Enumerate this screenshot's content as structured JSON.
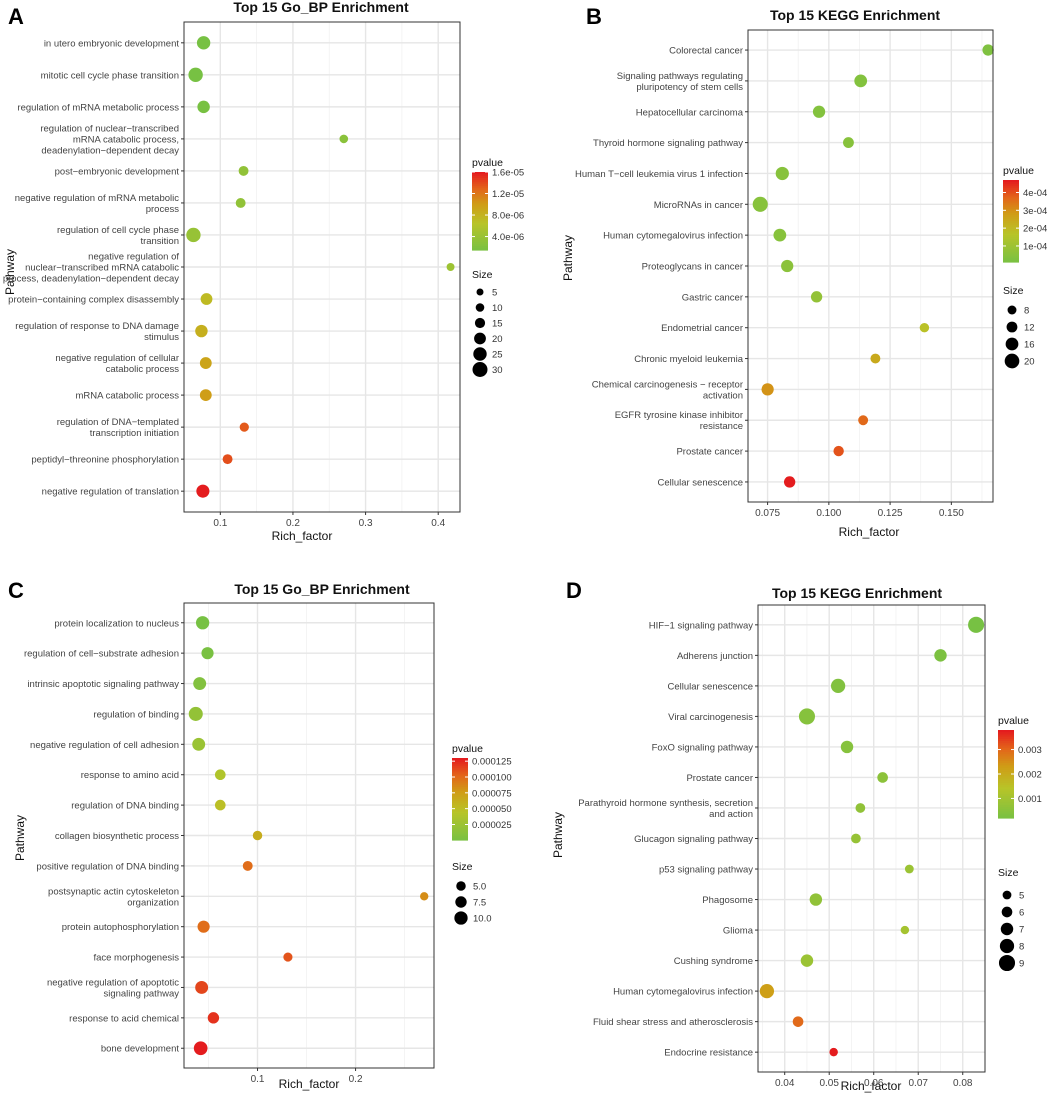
{
  "chart_data": [
    {
      "panel": "A",
      "type": "scatter",
      "title": "Top 15 Go_BP Enrichment",
      "xlabel": "Rich_factor",
      "ylabel": "Pathway",
      "xlim": [
        0.05,
        0.43
      ],
      "xticks": [
        0.1,
        0.2,
        0.3,
        0.4
      ],
      "xtick_labels": [
        "0.1",
        "0.2",
        "0.3",
        "0.4"
      ],
      "color_legend": {
        "title": "pvalue",
        "min": 1.5e-06,
        "max": 1.6e-05,
        "labels": [
          "1.6e-05",
          "1.2e-05",
          "8.0e-06",
          "4.0e-06"
        ],
        "values": [
          1.6e-05,
          1.2e-05,
          8e-06,
          4e-06
        ]
      },
      "size_legend": {
        "title": "Size",
        "labels": [
          "5",
          "10",
          "15",
          "20",
          "25",
          "30"
        ],
        "values": [
          5,
          10,
          15,
          20,
          25,
          30
        ],
        "min": 5,
        "max": 30
      },
      "categories": [
        "in utero embryonic development",
        "mitotic cell cycle phase transition",
        "regulation of mRNA metabolic process",
        "regulation of nuclear−transcribed\nmRNA catabolic process,\ndeadenylation−dependent decay",
        "post−embryonic development",
        "negative regulation of mRNA metabolic\nprocess",
        "regulation of cell cycle phase\ntransition",
        "negative regulation of\nnuclear−transcribed mRNA catabolic\nprocess, deadenylation−dependent decay",
        "protein−containing complex disassembly",
        "regulation of response to DNA damage\nstimulus",
        "negative regulation of cellular\ncatabolic process",
        "mRNA catabolic process",
        "regulation of DNA−templated\ntranscription initiation",
        "peptidyl−threonine phosphorylation",
        "negative regulation of translation"
      ],
      "x": [
        0.077,
        0.066,
        0.077,
        0.27,
        0.132,
        0.128,
        0.063,
        0.417,
        0.081,
        0.074,
        0.08,
        0.08,
        0.133,
        0.11,
        0.076
      ],
      "size": [
        25,
        28,
        22,
        10,
        14,
        14,
        28,
        8,
        20,
        22,
        20,
        20,
        12,
        14,
        24
      ],
      "pvalue": [
        1.5e-06,
        1.5e-06,
        1.6e-06,
        3e-06,
        3.5e-06,
        3.5e-06,
        4e-06,
        4.5e-06,
        7.5e-06,
        8.5e-06,
        9.5e-06,
        1e-05,
        1.35e-05,
        1.4e-05,
        1.6e-05
      ]
    },
    {
      "panel": "B",
      "type": "scatter",
      "title": "Top 15 KEGG Enrichment",
      "xlabel": "Rich_factor",
      "ylabel": "Pathway",
      "xlim": [
        0.067,
        0.167
      ],
      "xticks": [
        0.075,
        0.1,
        0.125,
        0.15
      ],
      "xtick_labels": [
        "0.075",
        "0.100",
        "0.125",
        "0.150"
      ],
      "color_legend": {
        "title": "pvalue",
        "min": 1e-05,
        "max": 0.00047,
        "labels": [
          "4e-04",
          "3e-04",
          "2e-04",
          "1e-04"
        ],
        "values": [
          0.0004,
          0.0003,
          0.0002,
          0.0001
        ]
      },
      "size_legend": {
        "title": "Size",
        "labels": [
          "8",
          "12",
          "16",
          "20"
        ],
        "values": [
          8,
          12,
          16,
          20
        ],
        "min": 6,
        "max": 22
      },
      "categories": [
        "Colorectal cancer",
        "Signaling pathways regulating\npluripotency of stem cells",
        "Hepatocellular carcinoma",
        "Thyroid hormone signaling pathway",
        "Human T−cell leukemia virus 1 infection",
        "MicroRNAs in cancer",
        "Human cytomegalovirus infection",
        "Proteoglycans in cancer",
        "Gastric cancer",
        "Endometrial cancer",
        "Chronic myeloid leukemia",
        "Chemical carcinogenesis − receptor\nactivation",
        "EGFR tyrosine kinase inhibitor\nresistance",
        "Prostate cancer",
        "Cellular senescence"
      ],
      "x": [
        0.165,
        0.113,
        0.096,
        0.108,
        0.081,
        0.072,
        0.08,
        0.083,
        0.095,
        0.139,
        0.119,
        0.075,
        0.114,
        0.104,
        0.084
      ],
      "size": [
        13,
        16,
        15,
        12,
        17,
        21,
        16,
        15,
        13,
        9,
        10,
        15,
        10,
        11,
        13
      ],
      "pvalue": [
        3e-05,
        4e-05,
        4e-05,
        5e-05,
        5e-05,
        5e-05,
        5e-05,
        6e-05,
        8e-05,
        0.00018,
        0.00025,
        0.0003,
        0.00037,
        0.0004,
        0.00047
      ]
    },
    {
      "panel": "C",
      "type": "scatter",
      "title": "Top 15 Go_BP Enrichment",
      "xlabel": "Rich_factor",
      "ylabel": "Pathway",
      "xlim": [
        0.025,
        0.28
      ],
      "xticks": [
        0.1,
        0.2
      ],
      "xtick_labels": [
        "0.1",
        "0.2"
      ],
      "color_legend": {
        "title": "pvalue",
        "min": 5e-07,
        "max": 0.00013,
        "labels": [
          "0.000125",
          "0.000100",
          "0.000075",
          "0.000050",
          "0.000025"
        ],
        "values": [
          0.000125,
          0.0001,
          7.5e-05,
          5e-05,
          2.5e-05
        ]
      },
      "size_legend": {
        "title": "Size",
        "labels": [
          "5.0",
          "7.5",
          "10.0"
        ],
        "values": [
          5,
          7.5,
          10
        ],
        "min": 3,
        "max": 12
      },
      "categories": [
        "protein localization to nucleus",
        "regulation of cell−substrate adhesion",
        "intrinsic apoptotic signaling pathway",
        "regulation of binding",
        "negative regulation of cell adhesion",
        "response to amino acid",
        "regulation of DNA binding",
        "collagen biosynthetic process",
        "positive regulation of DNA binding",
        "postsynaptic actin cytoskeleton\norganization",
        "protein autophosphorylation",
        "face morphogenesis",
        "negative regulation of apoptotic\nsignaling pathway",
        "response to acid chemical",
        "bone development"
      ],
      "x": [
        0.044,
        0.049,
        0.041,
        0.037,
        0.04,
        0.062,
        0.062,
        0.1,
        0.09,
        0.27,
        0.045,
        0.131,
        0.043,
        0.055,
        0.042
      ],
      "size": [
        10,
        8.5,
        9.5,
        11,
        9.5,
        6.5,
        6.5,
        5,
        5.5,
        3.5,
        8.5,
        4.5,
        9.5,
        7.5,
        10.5
      ],
      "pvalue": [
        5e-07,
        2e-06,
        8e-06,
        2e-05,
        2.5e-05,
        4e-05,
        5e-05,
        6.5e-05,
        0.0001,
        8.5e-05,
        0.0001,
        0.00011,
        0.000115,
        0.000122,
        0.00013
      ]
    },
    {
      "panel": "D",
      "type": "scatter",
      "title": "Top 15 KEGG Enrichment",
      "xlabel": "Rich_factor",
      "ylabel": "Pathway",
      "xlim": [
        0.034,
        0.085
      ],
      "xticks": [
        0.04,
        0.05,
        0.06,
        0.07,
        0.08
      ],
      "xtick_labels": [
        "0.04",
        "0.05",
        "0.06",
        "0.07",
        "0.08"
      ],
      "color_legend": {
        "title": "pvalue",
        "min": 0.0002,
        "max": 0.0038,
        "labels": [
          "0.003",
          "0.002",
          "0.001"
        ],
        "values": [
          0.003,
          0.002,
          0.001
        ]
      },
      "size_legend": {
        "title": "Size",
        "labels": [
          "5",
          "6",
          "7",
          "8",
          "9"
        ],
        "values": [
          5,
          6,
          7,
          8,
          9
        ],
        "min": 4,
        "max": 9.5
      },
      "categories": [
        "HIF−1 signaling pathway",
        "Adherens junction",
        "Cellular senescence",
        "Viral carcinogenesis",
        "FoxO signaling pathway",
        "Prostate cancer",
        "Parathyroid hormone synthesis, secretion\nand action",
        "Glucagon signaling pathway",
        "p53 signaling pathway",
        "Phagosome",
        "Glioma",
        "Cushing syndrome",
        "Human cytomegalovirus infection",
        "Fluid shear stress and atherosclerosis",
        "Endocrine resistance"
      ],
      "x": [
        0.083,
        0.075,
        0.052,
        0.045,
        0.054,
        0.062,
        0.057,
        0.056,
        0.068,
        0.047,
        0.067,
        0.045,
        0.036,
        0.043,
        0.051
      ],
      "size": [
        9,
        7,
        8,
        9,
        7,
        6,
        5.5,
        5.5,
        5,
        7,
        4.8,
        7,
        8,
        6,
        4.8
      ],
      "pvalue": [
        0.0002,
        0.0003,
        0.0004,
        0.0005,
        0.0005,
        0.0006,
        0.0007,
        0.0008,
        0.0009,
        0.0007,
        0.0011,
        0.0009,
        0.0023,
        0.003,
        0.0038
      ]
    }
  ]
}
